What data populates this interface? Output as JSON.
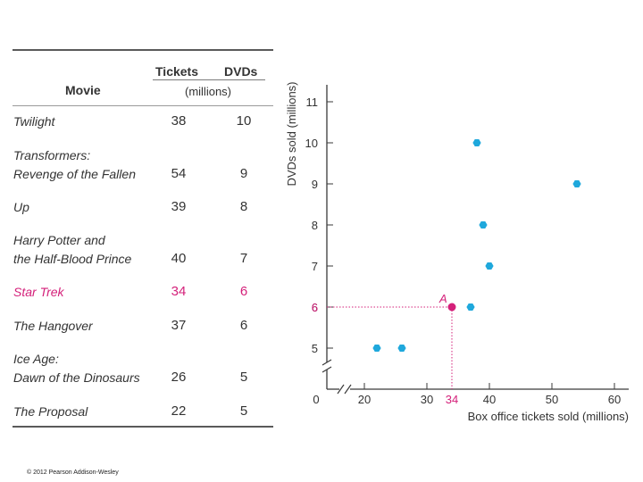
{
  "table": {
    "headers": {
      "movie": "Movie",
      "tickets": "Tickets",
      "dvds": "DVDs",
      "units": "(millions)"
    },
    "rows": [
      {
        "movie_line1": "Twilight",
        "movie_line2": "",
        "tickets": "38",
        "dvds": "10",
        "highlight": false
      },
      {
        "movie_line1": "Transformers:",
        "movie_line2": "Revenge of the Fallen",
        "tickets": "54",
        "dvds": "9",
        "highlight": false
      },
      {
        "movie_line1": "Up",
        "movie_line2": "",
        "tickets": "39",
        "dvds": "8",
        "highlight": false
      },
      {
        "movie_line1": "Harry Potter and",
        "movie_line2": "the Half-Blood Prince",
        "tickets": "40",
        "dvds": "7",
        "highlight": false
      },
      {
        "movie_line1": "Star Trek",
        "movie_line2": "",
        "tickets": "34",
        "dvds": "6",
        "highlight": true
      },
      {
        "movie_line1": "The Hangover",
        "movie_line2": "",
        "tickets": "37",
        "dvds": "6",
        "highlight": false
      },
      {
        "movie_line1": "Ice Age:",
        "movie_line2": "Dawn of the Dinosaurs",
        "tickets": "26",
        "dvds": "5",
        "highlight": false
      },
      {
        "movie_line1": "The Proposal",
        "movie_line2": "",
        "tickets": "22",
        "dvds": "5",
        "highlight": false
      }
    ]
  },
  "chart_data": {
    "type": "scatter",
    "xlabel": "Box office tickets sold (millions)",
    "ylabel": "DVDs sold (millions)",
    "xlim": [
      0,
      60
    ],
    "ylim": [
      5,
      11
    ],
    "x_ticks": [
      0,
      20,
      30,
      40,
      50,
      60
    ],
    "y_ticks": [
      5,
      6,
      7,
      8,
      9,
      10,
      11
    ],
    "x_highlight_tick": 34,
    "axis_breaks": true,
    "points": [
      {
        "x": 38,
        "y": 10
      },
      {
        "x": 54,
        "y": 9
      },
      {
        "x": 39,
        "y": 8
      },
      {
        "x": 40,
        "y": 7
      },
      {
        "x": 34,
        "y": 6,
        "label": "A",
        "highlight": true
      },
      {
        "x": 37,
        "y": 6
      },
      {
        "x": 26,
        "y": 5
      },
      {
        "x": 22,
        "y": 5
      }
    ],
    "colors": {
      "point": "#1fa8dc",
      "highlight": "#d4207a",
      "axis": "#3a3a3a"
    }
  },
  "credit": "© 2012 Pearson Addison-Wesley"
}
